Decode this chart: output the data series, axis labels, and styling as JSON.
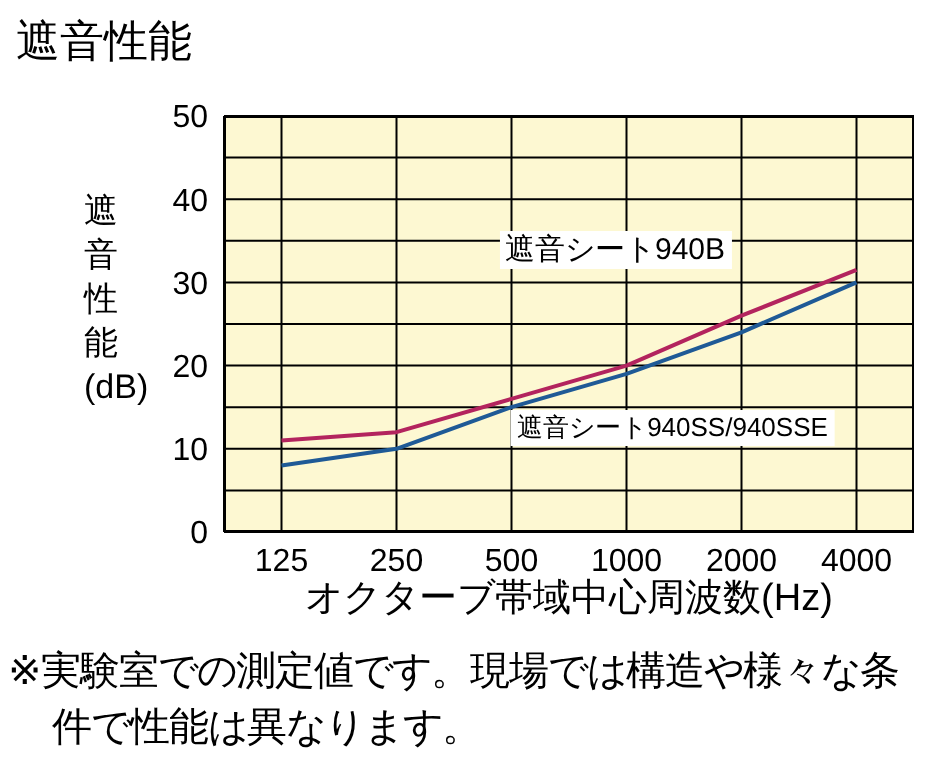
{
  "chart_data": {
    "type": "line",
    "title": "遮音性能",
    "ylabel": "遮音性能(dB)",
    "xlabel": "オクターブ帯域中心周波数(Hz)",
    "annotations": [
      "※実験室での測定値です。現場では構造や様々な条件で性能は異なります。"
    ],
    "categories": [
      "125",
      "250",
      "500",
      "1000",
      "2000",
      "4000"
    ],
    "series": [
      {
        "name": "遮音シート940B",
        "color": "#b3245e",
        "values": [
          11,
          12,
          16,
          20,
          26,
          31.5
        ]
      },
      {
        "name": "遮音シート940SS/940SSE",
        "color": "#1f5a96",
        "values": [
          8,
          10,
          15,
          19,
          24,
          30
        ]
      }
    ],
    "ylim": [
      0,
      50
    ],
    "yticks": [
      0,
      {
        "value": 5,
        "label": null
      },
      10,
      {
        "value": 15,
        "label": null
      },
      20,
      {
        "value": 25,
        "label": null
      },
      30,
      {
        "value": 35,
        "label": null
      },
      40,
      {
        "value": 45,
        "label": null
      },
      50
    ],
    "grid": true,
    "marker": "none",
    "line_style": "solid"
  }
}
